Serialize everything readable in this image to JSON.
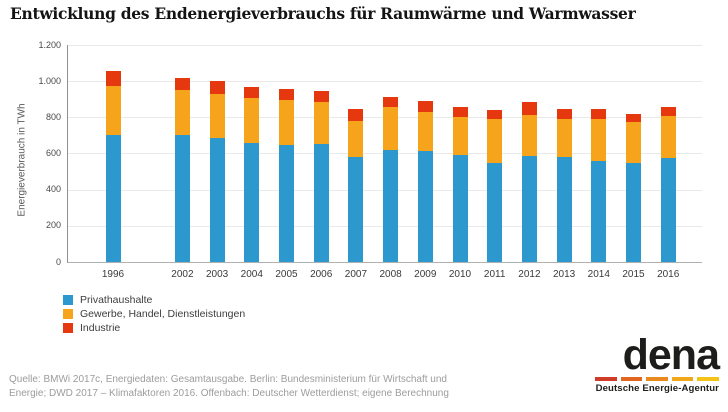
{
  "title": "Entwicklung des Endenergieverbrauchs für Raumwärme und Warmwasser",
  "chart_data": {
    "type": "bar",
    "stacked": true,
    "title": "Entwicklung des Endenergieverbrauchs für Raumwärme und Warmwasser",
    "xlabel": "",
    "ylabel": "Energieverbrauch in TWh",
    "ylim": [
      0,
      1200
    ],
    "ytick_step": 200,
    "ytick_labels": [
      "0",
      "200",
      "400",
      "600",
      "800",
      "1.000",
      "1.200"
    ],
    "grid": true,
    "legend_position": "bottom-left",
    "categories": [
      1996,
      2002,
      2003,
      2004,
      2005,
      2006,
      2007,
      2008,
      2009,
      2010,
      2011,
      2012,
      2013,
      2014,
      2015,
      2016
    ],
    "gap_after_1996": true,
    "series": [
      {
        "name": "Privathaushalte",
        "color": "#2C98CE",
        "values": [
          700,
          700,
          685,
          660,
          645,
          655,
          580,
          620,
          615,
          590,
          550,
          585,
          580,
          560,
          550,
          575
        ]
      },
      {
        "name": "Gewerbe, Handel, Dienstleistungen",
        "color": "#F7A41D",
        "values": [
          275,
          250,
          245,
          245,
          250,
          230,
          200,
          235,
          215,
          210,
          240,
          230,
          210,
          230,
          225,
          230
        ]
      },
      {
        "name": "Industrie",
        "color": "#E6380F",
        "values": [
          80,
          70,
          70,
          62,
          60,
          62,
          65,
          60,
          60,
          60,
          50,
          70,
          55,
          55,
          45,
          50
        ]
      }
    ]
  },
  "source": {
    "line1": "Quelle: BMWi 2017c, Energiedaten: Gesamtausgabe. Berlin: Bundesministerium für Wirtschaft und",
    "line2": "Energie; DWD 2017 – Klimafaktoren 2016. Offenbach: Deutscher Wetterdienst; eigene Berechnung"
  },
  "logo": {
    "wordmark": "dena",
    "subtitle": "Deutsche Energie-Agentur",
    "dash_colors": [
      "#D13C28",
      "#E1661F",
      "#EA8A1E",
      "#F0A71C",
      "#F5C318"
    ]
  }
}
